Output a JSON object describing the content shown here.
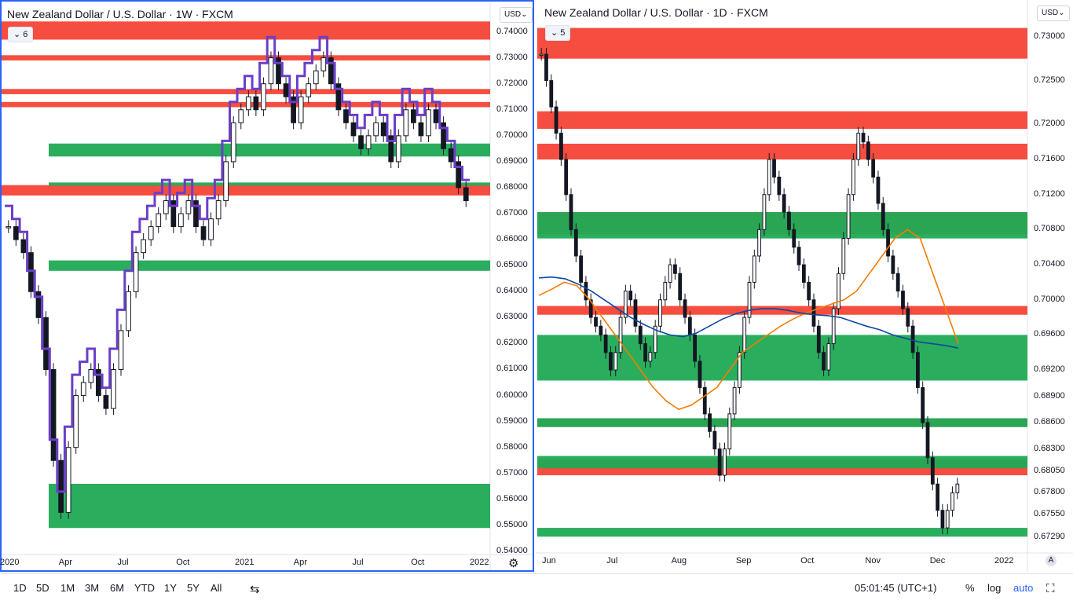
{
  "left_chart": {
    "symbol_title": "New Zealand Dollar / U.S. Dollar · 1W · FXCM",
    "indicator_badge": "6",
    "currency_button": "USD",
    "price_ticks": [
      "0.74000",
      "0.73000",
      "0.72000",
      "0.71000",
      "0.70000",
      "0.69000",
      "0.68000",
      "0.67000",
      "0.66000",
      "0.65000",
      "0.64000",
      "0.63000",
      "0.62000",
      "0.61000",
      "0.60000",
      "0.59000",
      "0.58000",
      "0.57000",
      "0.56000",
      "0.55000",
      "0.54000"
    ],
    "time_ticks": [
      "2020",
      "Apr",
      "Jul",
      "Oct",
      "2021",
      "Apr",
      "Jul",
      "Oct",
      "2022"
    ],
    "settings_icon": "gear-icon"
  },
  "right_chart": {
    "symbol_title": "New Zealand Dollar / U.S. Dollar · 1D · FXCM",
    "indicator_badge": "5",
    "currency_button": "USD",
    "price_ticks": [
      "0.73000",
      "0.72500",
      "0.72000",
      "0.71600",
      "0.71200",
      "0.70800",
      "0.70400",
      "0.70000",
      "0.69600",
      "0.69200",
      "0.68900",
      "0.68600",
      "0.68300",
      "0.68050",
      "0.67800",
      "0.67550",
      "0.67290"
    ],
    "time_ticks": [
      "Jun",
      "Jul",
      "Aug",
      "Sep",
      "Oct",
      "Nov",
      "Dec",
      "2022"
    ],
    "auto_scale_icon": "A"
  },
  "bottom_bar": {
    "ranges": [
      "1D",
      "5D",
      "1M",
      "3M",
      "6M",
      "YTD",
      "1Y",
      "5Y",
      "All"
    ],
    "clock": "05:01:45 (UTC+1)",
    "percent_label": "%",
    "log_label": "log",
    "auto_label": "auto"
  },
  "chart_data": [
    {
      "type": "candlestick",
      "pair": "NZD/USD",
      "interval": "1W",
      "ylim": [
        0.54,
        0.745
      ],
      "x_range": [
        "2020",
        "2022"
      ],
      "close_series": [
        0.665,
        0.66,
        0.655,
        0.64,
        0.63,
        0.61,
        0.575,
        0.555,
        0.58,
        0.6,
        0.605,
        0.61,
        0.6,
        0.595,
        0.61,
        0.625,
        0.64,
        0.655,
        0.66,
        0.665,
        0.67,
        0.675,
        0.665,
        0.67,
        0.675,
        0.665,
        0.66,
        0.668,
        0.675,
        0.69,
        0.705,
        0.71,
        0.715,
        0.71,
        0.72,
        0.73,
        0.72,
        0.715,
        0.705,
        0.715,
        0.72,
        0.725,
        0.73,
        0.72,
        0.71,
        0.705,
        0.7,
        0.695,
        0.7,
        0.705,
        0.7,
        0.69,
        0.7,
        0.71,
        0.705,
        0.7,
        0.71,
        0.705,
        0.695,
        0.69,
        0.68,
        0.675
      ],
      "supply_zones": [
        [
          0.737,
          0.744
        ],
        [
          0.729,
          0.731
        ],
        [
          0.716,
          0.718
        ],
        [
          0.711,
          0.713
        ],
        [
          0.677,
          0.681
        ]
      ],
      "demand_zones": [
        [
          0.692,
          0.697
        ],
        [
          0.681,
          0.682
        ],
        [
          0.648,
          0.652
        ],
        [
          0.549,
          0.566
        ]
      ]
    },
    {
      "type": "candlestick",
      "pair": "NZD/USD",
      "interval": "1D",
      "ylim": [
        0.6715,
        0.7315
      ],
      "x_range": [
        "Jun",
        "2022"
      ],
      "close_series": [
        0.728,
        0.725,
        0.722,
        0.719,
        0.716,
        0.712,
        0.708,
        0.705,
        0.702,
        0.7,
        0.698,
        0.697,
        0.696,
        0.694,
        0.692,
        0.694,
        0.698,
        0.701,
        0.7,
        0.697,
        0.695,
        0.693,
        0.694,
        0.697,
        0.7,
        0.702,
        0.704,
        0.703,
        0.7,
        0.698,
        0.696,
        0.693,
        0.69,
        0.687,
        0.685,
        0.683,
        0.68,
        0.683,
        0.687,
        0.69,
        0.694,
        0.698,
        0.702,
        0.705,
        0.708,
        0.712,
        0.716,
        0.714,
        0.712,
        0.71,
        0.708,
        0.706,
        0.704,
        0.702,
        0.7,
        0.697,
        0.694,
        0.692,
        0.695,
        0.699,
        0.703,
        0.707,
        0.712,
        0.716,
        0.719,
        0.718,
        0.716,
        0.714,
        0.711,
        0.708,
        0.705,
        0.703,
        0.701,
        0.699,
        0.697,
        0.694,
        0.69,
        0.686,
        0.682,
        0.679,
        0.676,
        0.674,
        0.676,
        0.678,
        0.679
      ],
      "moving_averages": [
        {
          "color": "#f57c00",
          "values": [
            0.7005,
            0.7012,
            0.702,
            0.7016,
            0.7,
            0.698,
            0.696,
            0.694,
            0.692,
            0.69,
            0.6885,
            0.6875,
            0.688,
            0.689,
            0.69,
            0.692,
            0.694,
            0.695,
            0.696,
            0.697,
            0.6978,
            0.6985,
            0.699,
            0.6995,
            0.7,
            0.701,
            0.703,
            0.705,
            0.707,
            0.708,
            0.707,
            0.703,
            0.699,
            0.695
          ]
        },
        {
          "color": "#0d47a1",
          "values": [
            0.7025,
            0.7026,
            0.7024,
            0.7018,
            0.701,
            0.7,
            0.699,
            0.698,
            0.6972,
            0.6965,
            0.696,
            0.6958,
            0.6962,
            0.697,
            0.6978,
            0.6984,
            0.6988,
            0.699,
            0.699,
            0.6988,
            0.6985,
            0.6983,
            0.6982,
            0.698,
            0.6975,
            0.697,
            0.6966,
            0.696,
            0.6956,
            0.6952,
            0.695,
            0.6948,
            0.6945
          ]
        }
      ],
      "supply_zones": [
        [
          0.7275,
          0.731
        ],
        [
          0.7195,
          0.7215
        ],
        [
          0.716,
          0.7178
        ],
        [
          0.7075,
          0.71
        ],
        [
          0.6983,
          0.6993
        ],
        [
          0.6855,
          0.6865
        ],
        [
          0.68,
          0.6818
        ]
      ],
      "demand_zones": [
        [
          0.6908,
          0.696
        ],
        [
          0.707,
          0.71
        ],
        [
          0.6855,
          0.6865
        ],
        [
          0.6808,
          0.6822
        ],
        [
          0.673,
          0.674
        ]
      ]
    }
  ]
}
